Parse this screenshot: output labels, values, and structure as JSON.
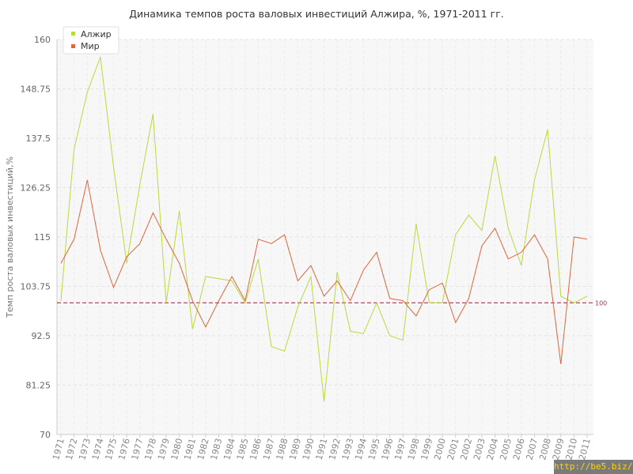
{
  "chart_data": {
    "type": "line",
    "title": "Динамика темпов роста валовых инвестиций Алжира, %, 1971-2011 гг.",
    "ylabel": "Темп роста валовых инвестиций,%",
    "xlabel": "",
    "ylim": [
      70,
      160
    ],
    "yticks": [
      "70",
      "81.25",
      "92.5",
      "103.75",
      "115",
      "126.25",
      "137.5",
      "148.75",
      "160"
    ],
    "x": [
      "1971",
      "1972",
      "1973",
      "1974",
      "1975",
      "1976",
      "1977",
      "1978",
      "1979",
      "1980",
      "1981",
      "1982",
      "1983",
      "1984",
      "1985",
      "1986",
      "1987",
      "1988",
      "1989",
      "1990",
      "1991",
      "1992",
      "1993",
      "1994",
      "1995",
      "1996",
      "1997",
      "1998",
      "1999",
      "2000",
      "2001",
      "2002",
      "2003",
      "2004",
      "2005",
      "2006",
      "2007",
      "2008",
      "2009",
      "2010",
      "2011"
    ],
    "series": [
      {
        "name": "Алжир",
        "color": "#bada3a",
        "values": [
          100.5,
          135,
          148,
          156,
          131,
          109,
          127,
          143,
          100,
          121,
          94,
          106,
          105.5,
          105,
          100,
          110,
          90,
          89,
          99,
          106,
          77.5,
          107,
          93.5,
          93,
          100,
          92.5,
          91.5,
          118,
          100,
          100,
          115.5,
          120,
          116.5,
          133.5,
          117,
          108.5,
          128,
          139.5,
          101.5,
          100,
          101.5
        ]
      },
      {
        "name": "Мир",
        "color": "#e0653a",
        "values": [
          109,
          114.5,
          128,
          112,
          103.5,
          110.5,
          113.5,
          120.5,
          114.5,
          109,
          100.5,
          94.5,
          100.5,
          106,
          100.5,
          114.5,
          113.5,
          115.5,
          105,
          108.5,
          101.5,
          105,
          100.5,
          107.5,
          111.5,
          101,
          100.5,
          97,
          103,
          104.5,
          95.5,
          101,
          113,
          117,
          110,
          111.5,
          115.5,
          110,
          86,
          115,
          114.5
        ]
      }
    ],
    "reference_line": {
      "value": 100,
      "label": "100",
      "color": "#9c3b54"
    },
    "grid": true,
    "legend": "top-left"
  },
  "watermark": "http://be5.biz/"
}
